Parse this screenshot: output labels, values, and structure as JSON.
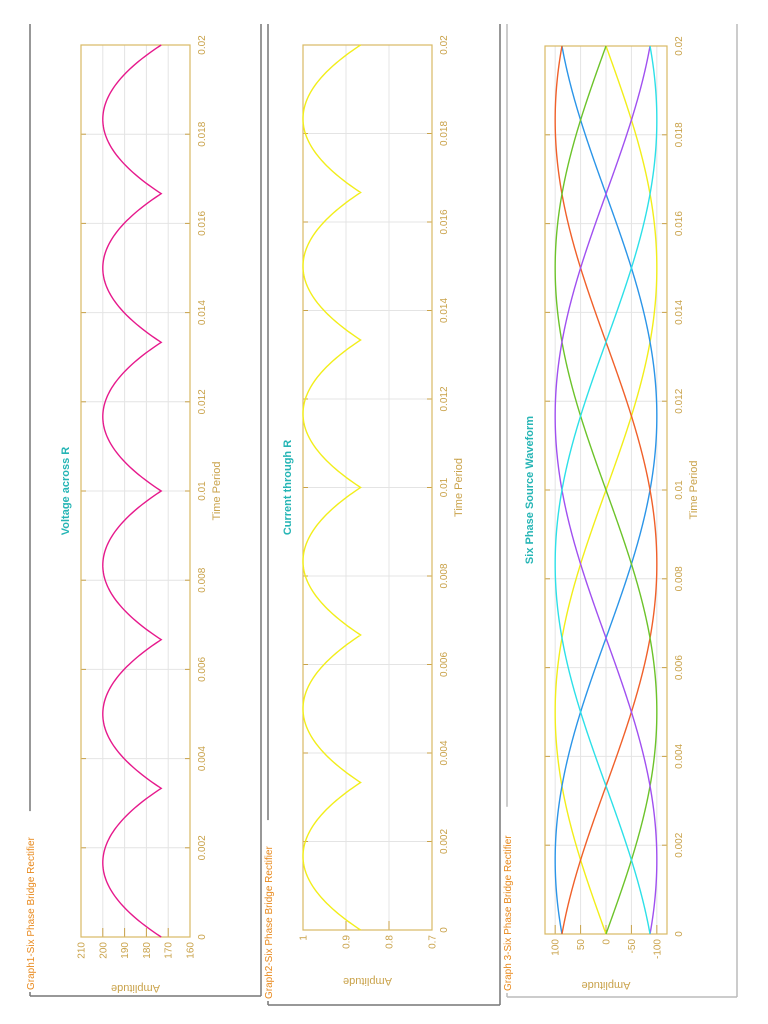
{
  "colors": {
    "legend": "#e8891c",
    "axis": "#c9a24a",
    "frame": "#d9b964",
    "title": "#26b5b5",
    "grid": "#e4e4e4"
  },
  "chart_data": [
    {
      "type": "line",
      "group_label": "Graph1-Six Phase Bridge Rectifier",
      "title": "Voltage across R",
      "xlabel": "Time Period",
      "ylabel": "Amplitude",
      "xlim": [
        0,
        0.02
      ],
      "ylim": [
        160,
        210
      ],
      "xticks": [
        "0",
        "0.002",
        "0.004",
        "0.006",
        "0.008",
        "0.01",
        "0.012",
        "0.014",
        "0.016",
        "0.018",
        "0.02"
      ],
      "yticks": [
        "160",
        "170",
        "180",
        "190",
        "200",
        "210"
      ],
      "grid": true,
      "series": [
        {
          "color": "#e6198c",
          "description_values": {
            "peak": 200,
            "min": 173.2,
            "cusps_t": [
              0,
              0.00333,
              0.00667,
              0.01,
              0.01333,
              0.01667,
              0.02
            ]
          }
        }
      ]
    },
    {
      "type": "line",
      "group_label": "Graph2-Six Phase Bridge Rectifier",
      "title": "Current through R",
      "xlabel": "Time Period",
      "ylabel": "Amplitude",
      "xlim": [
        0,
        0.02
      ],
      "ylim": [
        0.7,
        1
      ],
      "xticks": [
        "0",
        "0.002",
        "0.004",
        "0.006",
        "0.008",
        "0.01",
        "0.012",
        "0.014",
        "0.016",
        "0.018",
        "0.02"
      ],
      "yticks": [
        "0.7",
        "0.8",
        "0.9",
        "1"
      ],
      "grid": true,
      "series": [
        {
          "color": "#f2ee1a",
          "description_values": {
            "peak": 1.0,
            "min": 0.866,
            "cusps_t": [
              0,
              0.00333,
              0.00667,
              0.01,
              0.01333,
              0.01667,
              0.02
            ]
          }
        }
      ]
    },
    {
      "type": "line",
      "group_label": "Graph 3-Six Phase Bridge Rectifier",
      "title": "Six Phase Source Waveform",
      "xlabel": "Time Period",
      "ylabel": "Amplitude",
      "xlim": [
        0,
        0.02
      ],
      "ylim": [
        -120,
        120
      ],
      "xticks": [
        "0",
        "0.002",
        "0.004",
        "0.006",
        "0.008",
        "0.01",
        "0.012",
        "0.014",
        "0.016",
        "0.018",
        "0.02"
      ],
      "yticks": [
        "-100",
        "-50",
        "0",
        "50",
        "100"
      ],
      "grid": true,
      "series": [
        {
          "color": "#f2ee1a",
          "amplitude": 100,
          "frequency_hz": 50,
          "phase_deg": 0
        },
        {
          "color": "#2b95e8",
          "amplitude": 100,
          "frequency_hz": 50,
          "phase_deg": 60
        },
        {
          "color": "#f0602a",
          "amplitude": 100,
          "frequency_hz": 50,
          "phase_deg": 120
        },
        {
          "color": "#6cc32a",
          "amplitude": 100,
          "frequency_hz": 50,
          "phase_deg": 180
        },
        {
          "color": "#a050f0",
          "amplitude": 100,
          "frequency_hz": 50,
          "phase_deg": 240
        },
        {
          "color": "#2de0e8",
          "amplitude": 100,
          "frequency_hz": 50,
          "phase_deg": 300
        }
      ]
    }
  ]
}
